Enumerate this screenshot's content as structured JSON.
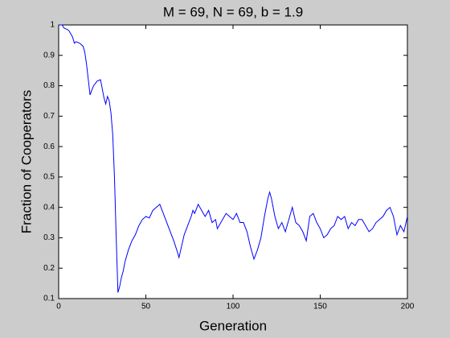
{
  "chart_data": {
    "type": "line",
    "title": "M = 69, N = 69, b = 1.9",
    "xlabel": "Generation",
    "ylabel": "Fraction of Cooperators",
    "xlim": [
      0,
      200
    ],
    "ylim": [
      0.1,
      1
    ],
    "xticks": [
      0,
      50,
      100,
      150,
      200
    ],
    "yticks": [
      0.1,
      0.2,
      0.3,
      0.4,
      0.5,
      0.6,
      0.7,
      0.8,
      0.9,
      1
    ],
    "grid": false,
    "series": [
      {
        "name": "Fraction of Cooperators",
        "color": "#0000ff",
        "x": [
          0,
          2,
          3,
          5,
          6,
          8,
          9,
          10,
          12,
          14,
          15,
          16,
          17,
          18,
          19,
          20,
          22,
          24,
          25,
          26,
          27,
          28,
          29,
          30,
          31,
          32,
          33,
          34,
          35,
          36,
          37,
          38,
          40,
          42,
          44,
          46,
          48,
          50,
          52,
          54,
          56,
          58,
          60,
          62,
          64,
          66,
          68,
          69,
          70,
          72,
          74,
          76,
          77,
          78,
          80,
          82,
          84,
          86,
          88,
          90,
          91,
          92,
          94,
          96,
          98,
          100,
          102,
          104,
          106,
          108,
          110,
          112,
          114,
          116,
          118,
          120,
          121,
          122,
          124,
          126,
          128,
          130,
          132,
          134,
          136,
          138,
          140,
          142,
          144,
          146,
          148,
          150,
          152,
          154,
          156,
          158,
          160,
          162,
          164,
          166,
          168,
          170,
          172,
          174,
          176,
          178,
          180,
          182,
          184,
          186,
          188,
          190,
          192,
          194,
          196,
          198,
          200
        ],
        "values": [
          1.0,
          1.0,
          0.99,
          0.985,
          0.98,
          0.96,
          0.94,
          0.945,
          0.94,
          0.93,
          0.91,
          0.87,
          0.82,
          0.77,
          0.785,
          0.8,
          0.815,
          0.82,
          0.79,
          0.76,
          0.74,
          0.765,
          0.75,
          0.71,
          0.64,
          0.5,
          0.3,
          0.12,
          0.14,
          0.17,
          0.19,
          0.22,
          0.26,
          0.29,
          0.31,
          0.34,
          0.36,
          0.37,
          0.365,
          0.39,
          0.4,
          0.41,
          0.38,
          0.35,
          0.32,
          0.29,
          0.255,
          0.235,
          0.26,
          0.31,
          0.34,
          0.37,
          0.39,
          0.38,
          0.41,
          0.39,
          0.37,
          0.39,
          0.35,
          0.36,
          0.33,
          0.34,
          0.36,
          0.38,
          0.37,
          0.36,
          0.38,
          0.35,
          0.35,
          0.32,
          0.27,
          0.23,
          0.26,
          0.3,
          0.37,
          0.43,
          0.45,
          0.43,
          0.37,
          0.33,
          0.35,
          0.32,
          0.36,
          0.4,
          0.35,
          0.34,
          0.32,
          0.29,
          0.37,
          0.38,
          0.35,
          0.33,
          0.3,
          0.31,
          0.33,
          0.34,
          0.37,
          0.36,
          0.37,
          0.33,
          0.35,
          0.34,
          0.36,
          0.36,
          0.34,
          0.32,
          0.33,
          0.35,
          0.36,
          0.37,
          0.39,
          0.4,
          0.37,
          0.31,
          0.34,
          0.32,
          0.37
        ]
      }
    ]
  }
}
